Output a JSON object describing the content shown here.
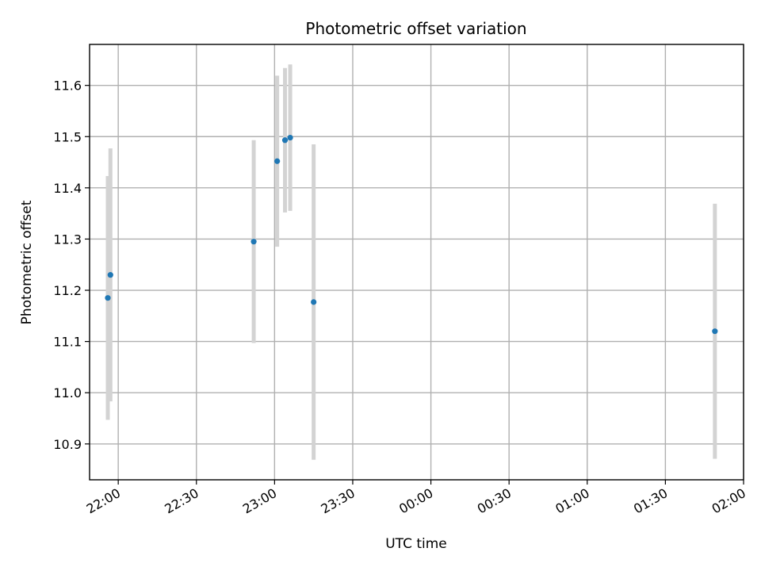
{
  "chart_data": {
    "type": "scatter",
    "title": "Photometric offset variation",
    "xlabel": "UTC time",
    "ylabel": "Photometric offset",
    "x_ticks": [
      "22:00",
      "22:30",
      "23:00",
      "23:30",
      "00:00",
      "00:30",
      "01:00",
      "01:30",
      "02:00"
    ],
    "y_ticks": [
      "10.9",
      "11.0",
      "11.1",
      "11.2",
      "11.3",
      "11.4",
      "11.5",
      "11.6"
    ],
    "xlim": [
      "21:49",
      "02:00"
    ],
    "ylim": [
      10.83,
      11.68
    ],
    "grid": true,
    "series": [
      {
        "points": [
          {
            "x": "21:56",
            "y": 11.185,
            "ymin": 10.947,
            "ymax": 11.423
          },
          {
            "x": "21:57",
            "y": 11.23,
            "ymin": 10.983,
            "ymax": 11.477
          },
          {
            "x": "22:52",
            "y": 11.295,
            "ymin": 11.097,
            "ymax": 11.493
          },
          {
            "x": "23:01",
            "y": 11.452,
            "ymin": 11.285,
            "ymax": 11.619
          },
          {
            "x": "23:04",
            "y": 11.493,
            "ymin": 11.352,
            "ymax": 11.634
          },
          {
            "x": "23:06",
            "y": 11.498,
            "ymin": 11.355,
            "ymax": 11.641
          },
          {
            "x": "23:15",
            "y": 11.177,
            "ymin": 10.869,
            "ymax": 11.485
          },
          {
            "x": "01:49",
            "y": 11.12,
            "ymin": 10.871,
            "ymax": 11.369
          }
        ]
      }
    ]
  },
  "colors": {
    "point": "#1f77b4",
    "errorbar": "#d3d3d3",
    "grid": "#b0b0b0",
    "frame": "#000000"
  }
}
